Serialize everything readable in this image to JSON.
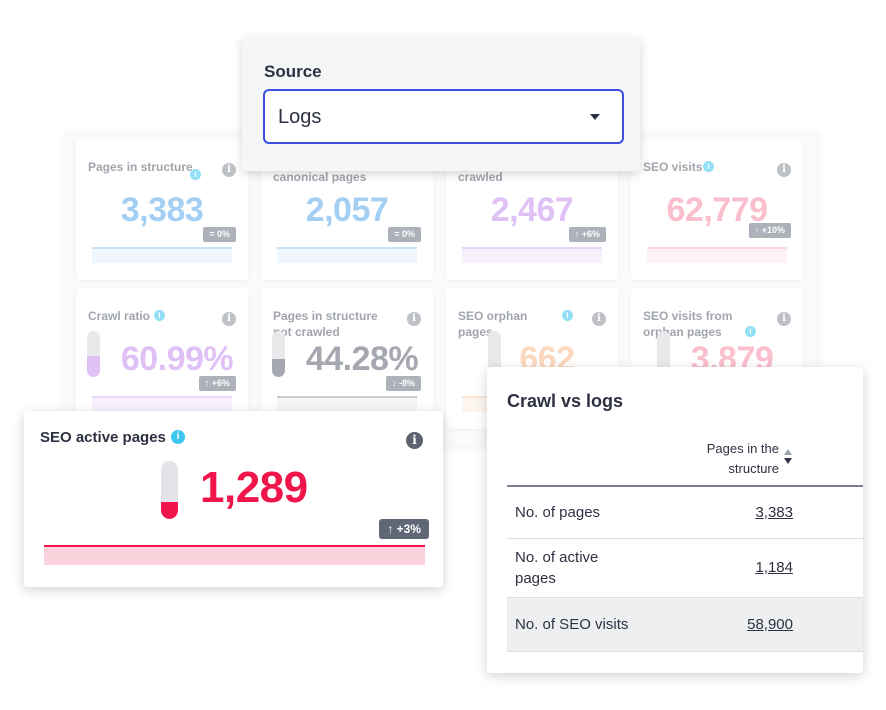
{
  "dashboard": {
    "cards": [
      {
        "label": "Pages in structure",
        "value": "3,383",
        "badge": "= 0%",
        "color": "#5aa8ec",
        "line": "#9ccaf5",
        "area": "#e3f0fc"
      },
      {
        "label": "canonical pages",
        "value": "2,057",
        "badge": "= 0%",
        "color": "#5aa8ec",
        "line": "#9ccaf5",
        "area": "#e3f0fc"
      },
      {
        "label": "crawled",
        "value": "2,467",
        "badge": "↑ +6%",
        "color": "#c58ff0",
        "line": "#d9b4f7",
        "area": "#f3e6fd"
      },
      {
        "label": "SEO visits",
        "value": "62,779",
        "badge": "↑ +10%",
        "color": "#f68aa6",
        "line": "#f8b5c6",
        "area": "#fde9ee"
      },
      {
        "label": "Crawl ratio",
        "value": "60.99%",
        "badge": "↑ +6%",
        "color": "#c58ff0",
        "line": "#d9b4f7",
        "area": "#f3e6fd",
        "level": 0.45
      },
      {
        "label": "Pages in structure not crawled",
        "value": "44.28%",
        "badge": "↓ -8%",
        "color": "#5c6270",
        "line": "#9aa0ac",
        "area": "#eceef1",
        "level": 0.4
      },
      {
        "label": "SEO orphan pages",
        "value": "662",
        "badge": "",
        "color": "#f8b98a",
        "line": "#f8cfae",
        "area": "#fdf0e5",
        "level": 0.2
      },
      {
        "label": "SEO visits from orphan pages",
        "value": "3,879",
        "badge": "",
        "color": "#f68aa6",
        "line": "#f8b5c6",
        "area": "#fde9ee",
        "level": 0.15
      }
    ]
  },
  "source": {
    "label": "Source",
    "value": "Logs"
  },
  "active": {
    "label": "SEO active pages",
    "value": "1,289",
    "badge": "↑ +3%",
    "level": 0.3
  },
  "table": {
    "title": "Crawl vs logs",
    "column": "Pages in the structure",
    "rows": [
      {
        "label": "No. of pages",
        "value": "3,383"
      },
      {
        "label": "No. of active pages",
        "value": "1,184"
      },
      {
        "label": "No. of SEO visits",
        "value": "58,900"
      }
    ]
  },
  "icons": {
    "info": "info-icon",
    "tooltip": "tooltip-icon",
    "caret": "chevron-down-icon",
    "sort": "sort-icon"
  }
}
